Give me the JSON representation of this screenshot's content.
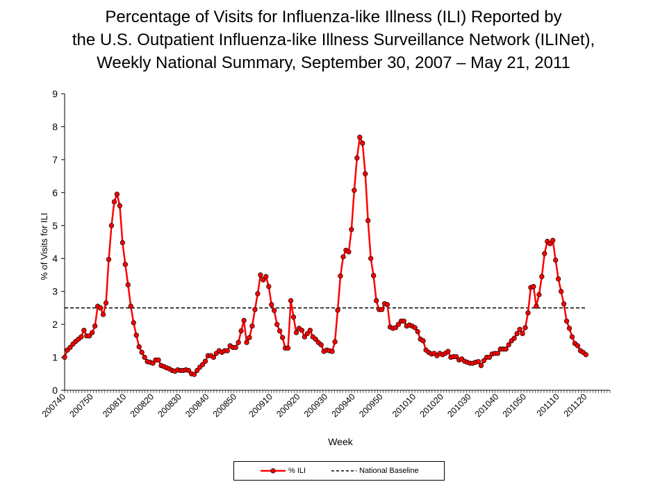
{
  "chart_data": {
    "type": "line",
    "title": [
      "Percentage of Visits for Influenza-like Illness (ILI) Reported by",
      "the U.S. Outpatient Influenza-like Illness Surveillance Network (ILINet),",
      "Weekly National Summary, September 30, 2007 – May 21, 2011"
    ],
    "xlabel": "Week",
    "ylabel": "% of Visits for ILI",
    "ylim": [
      0,
      9
    ],
    "yticks": [
      0,
      1,
      2,
      3,
      4,
      5,
      6,
      7,
      8,
      9
    ],
    "grid": false,
    "legend_position": "bottom",
    "x": [
      "200740",
      "200741",
      "200742",
      "200743",
      "200744",
      "200745",
      "200746",
      "200747",
      "200748",
      "200749",
      "200750",
      "200751",
      "200752",
      "200801",
      "200802",
      "200803",
      "200804",
      "200805",
      "200806",
      "200807",
      "200808",
      "200809",
      "200810",
      "200811",
      "200812",
      "200813",
      "200814",
      "200815",
      "200816",
      "200817",
      "200818",
      "200819",
      "200820",
      "200821",
      "200822",
      "200823",
      "200824",
      "200825",
      "200826",
      "200827",
      "200828",
      "200829",
      "200830",
      "200831",
      "200832",
      "200833",
      "200834",
      "200835",
      "200836",
      "200837",
      "200838",
      "200839",
      "200840",
      "200841",
      "200842",
      "200843",
      "200844",
      "200845",
      "200846",
      "200847",
      "200848",
      "200849",
      "200850",
      "200851",
      "200852",
      "200853",
      "200901",
      "200902",
      "200903",
      "200904",
      "200905",
      "200906",
      "200907",
      "200908",
      "200909",
      "200910",
      "200911",
      "200912",
      "200913",
      "200914",
      "200915",
      "200916",
      "200917",
      "200918",
      "200919",
      "200920",
      "200921",
      "200922",
      "200923",
      "200924",
      "200925",
      "200926",
      "200927",
      "200928",
      "200929",
      "200930",
      "200931",
      "200932",
      "200933",
      "200934",
      "200935",
      "200936",
      "200937",
      "200938",
      "200939",
      "200940",
      "200941",
      "200942",
      "200943",
      "200944",
      "200945",
      "200946",
      "200947",
      "200948",
      "200949",
      "200950",
      "200951",
      "200952",
      "201001",
      "201002",
      "201003",
      "201004",
      "201005",
      "201006",
      "201007",
      "201008",
      "201009",
      "201010",
      "201011",
      "201012",
      "201013",
      "201014",
      "201015",
      "201016",
      "201017",
      "201018",
      "201019",
      "201020",
      "201021",
      "201022",
      "201023",
      "201024",
      "201025",
      "201026",
      "201027",
      "201028",
      "201029",
      "201030",
      "201031",
      "201032",
      "201033",
      "201034",
      "201035",
      "201036",
      "201037",
      "201038",
      "201039",
      "201040",
      "201041",
      "201042",
      "201043",
      "201044",
      "201045",
      "201046",
      "201047",
      "201048",
      "201049",
      "201050",
      "201051",
      "201052",
      "201101",
      "201102",
      "201103",
      "201104",
      "201105",
      "201106",
      "201107",
      "201108",
      "201109",
      "201110",
      "201111",
      "201112",
      "201113",
      "201114",
      "201115",
      "201116",
      "201117",
      "201118",
      "201119",
      "201120"
    ],
    "tick_labels": [
      "200740",
      "200750",
      "200810",
      "200820",
      "200830",
      "200840",
      "200850",
      "200910",
      "200920",
      "200930",
      "200940",
      "200950",
      "201010",
      "201020",
      "201030",
      "201040",
      "201050",
      "201110",
      "201120"
    ],
    "series": [
      {
        "name": "% ILI",
        "color": "#ff0000",
        "marker": "circle",
        "values": [
          1.0,
          1.22,
          1.3,
          1.4,
          1.48,
          1.55,
          1.62,
          1.82,
          1.65,
          1.65,
          1.75,
          1.95,
          2.55,
          2.5,
          2.3,
          2.65,
          3.97,
          5.0,
          5.72,
          5.95,
          5.6,
          4.48,
          3.82,
          3.2,
          2.55,
          2.05,
          1.67,
          1.32,
          1.15,
          1.0,
          0.87,
          0.85,
          0.82,
          0.92,
          0.92,
          0.75,
          0.72,
          0.68,
          0.65,
          0.6,
          0.58,
          0.62,
          0.6,
          0.6,
          0.62,
          0.6,
          0.5,
          0.48,
          0.6,
          0.7,
          0.78,
          0.88,
          1.05,
          1.05,
          1.0,
          1.12,
          1.2,
          1.15,
          1.2,
          1.2,
          1.35,
          1.3,
          1.3,
          1.45,
          1.8,
          2.12,
          1.45,
          1.6,
          1.95,
          2.45,
          2.93,
          3.5,
          3.35,
          3.45,
          3.15,
          2.6,
          2.42,
          2.0,
          1.8,
          1.6,
          1.28,
          1.28,
          2.72,
          2.22,
          1.75,
          1.88,
          1.82,
          1.62,
          1.72,
          1.82,
          1.62,
          1.55,
          1.45,
          1.38,
          1.18,
          1.22,
          1.2,
          1.18,
          1.47,
          2.43,
          3.47,
          4.05,
          4.25,
          4.2,
          4.88,
          6.07,
          7.05,
          7.68,
          7.5,
          6.57,
          5.15,
          4.0,
          3.48,
          2.72,
          2.45,
          2.45,
          2.63,
          2.6,
          1.92,
          1.88,
          1.9,
          2.0,
          2.1,
          2.1,
          1.95,
          1.98,
          1.95,
          1.9,
          1.78,
          1.55,
          1.5,
          1.22,
          1.15,
          1.1,
          1.12,
          1.05,
          1.12,
          1.08,
          1.12,
          1.18,
          1.0,
          1.02,
          1.02,
          0.92,
          0.95,
          0.88,
          0.85,
          0.82,
          0.82,
          0.85,
          0.87,
          0.75,
          0.9,
          1.0,
          1.0,
          1.1,
          1.12,
          1.12,
          1.25,
          1.25,
          1.25,
          1.38,
          1.5,
          1.58,
          1.72,
          1.85,
          1.72,
          1.9,
          2.35,
          3.12,
          3.15,
          2.55,
          2.9,
          3.45,
          4.15,
          4.52,
          4.45,
          4.55,
          3.95,
          3.38,
          3.0,
          2.62,
          2.1,
          1.88,
          1.62,
          1.42,
          1.35,
          1.2,
          1.15,
          1.08
        ]
      },
      {
        "name": "National Baseline",
        "color": "#000000",
        "style": "dashed",
        "constant": 2.5
      }
    ]
  }
}
